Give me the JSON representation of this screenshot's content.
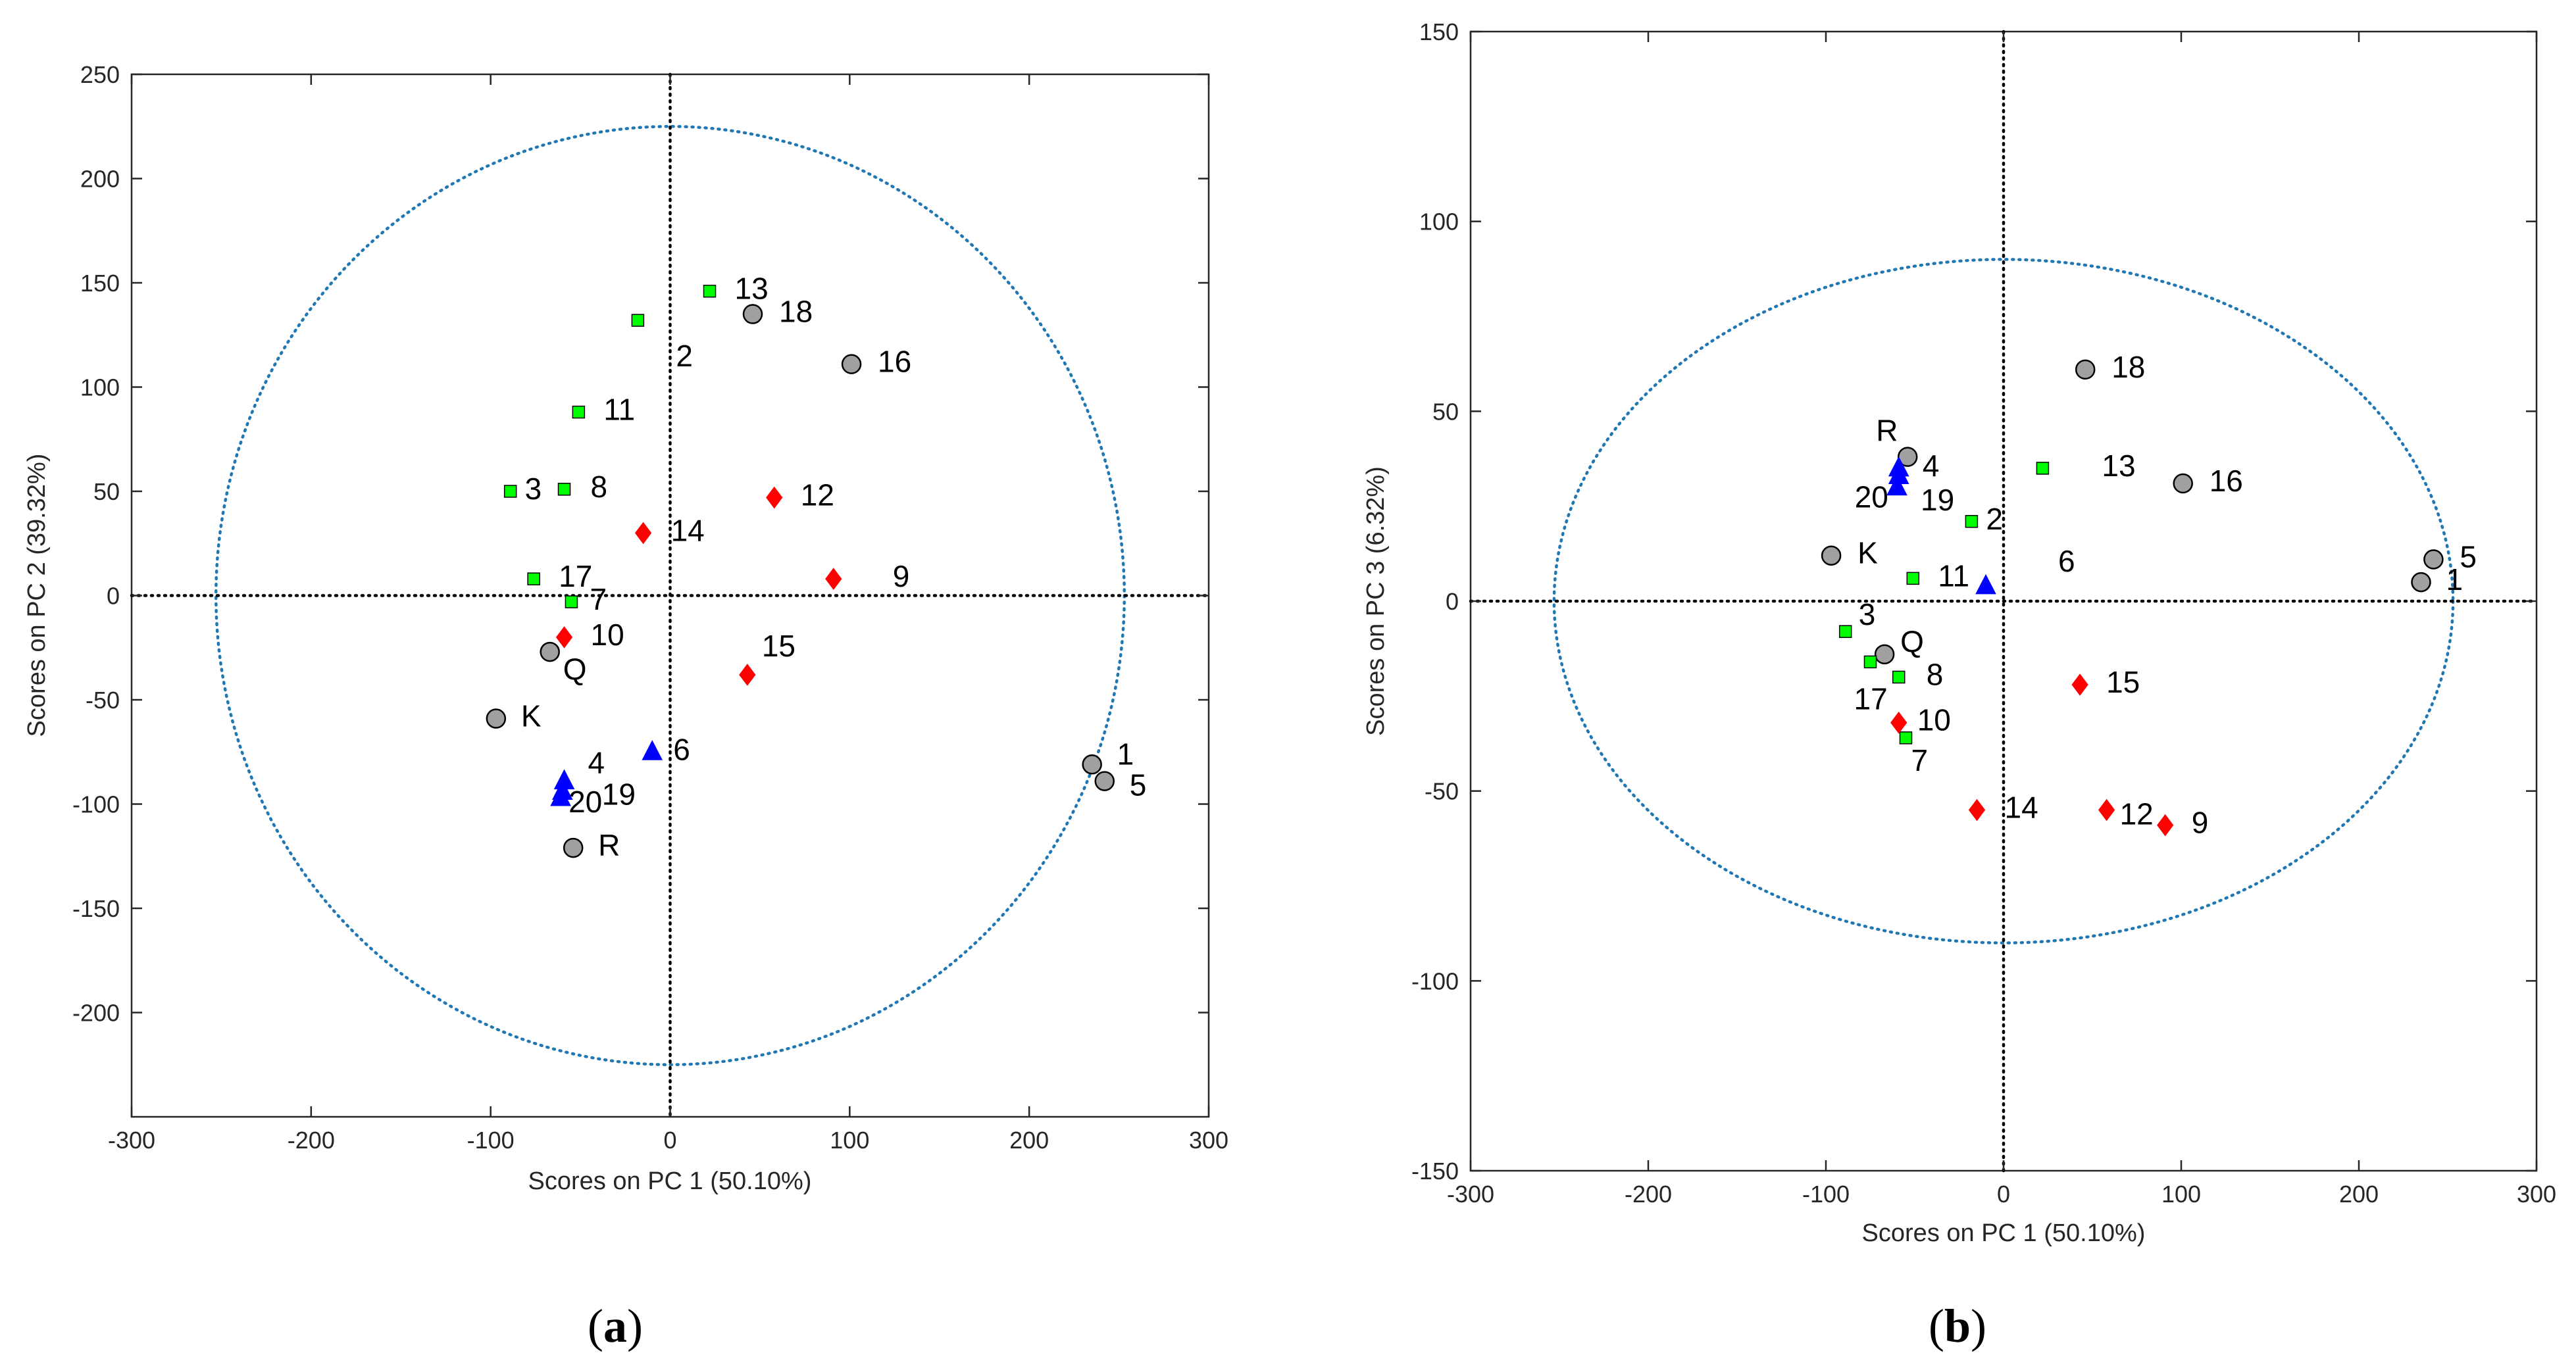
{
  "colors": {
    "group_gray": "#a0a0a0",
    "group_green": "#00ff00",
    "group_red": "#ff0000",
    "group_blue": "#0000ff",
    "ellipse": "#1f77b4",
    "axes": "#262626"
  },
  "panels": [
    {
      "caption_open": "(",
      "caption_letter": "a",
      "caption_close": ")"
    },
    {
      "caption_open": "(",
      "caption_letter": "b",
      "caption_close": ")"
    }
  ],
  "chart_data": [
    {
      "type": "scatter",
      "title": "",
      "xlabel": "Scores on PC 1 (50.10%)",
      "ylabel": "Scores on PC 2 (39.32%)",
      "xlim": [
        -300,
        300
      ],
      "ylim": [
        -250,
        250
      ],
      "xticks": [
        -300,
        -200,
        -100,
        0,
        100,
        200,
        300
      ],
      "yticks": [
        -200,
        -150,
        -100,
        -50,
        0,
        50,
        100,
        150,
        200,
        250
      ],
      "zero_lines": true,
      "confidence_ellipse": {
        "center": [
          0,
          0
        ],
        "rx": 253,
        "ry": 225
      },
      "grid": false,
      "points": [
        {
          "label": "1",
          "x": 235,
          "y": -81,
          "group": "gray"
        },
        {
          "label": "5",
          "x": 242,
          "y": -89,
          "group": "gray"
        },
        {
          "label": "18",
          "x": 46,
          "y": 135,
          "group": "gray"
        },
        {
          "label": "16",
          "x": 101,
          "y": 111,
          "group": "gray"
        },
        {
          "label": "Q",
          "x": -67,
          "y": -27,
          "group": "gray"
        },
        {
          "label": "K",
          "x": -97,
          "y": -59,
          "group": "gray"
        },
        {
          "label": "R",
          "x": -54,
          "y": -121,
          "group": "gray"
        },
        {
          "label": "13",
          "x": 22,
          "y": 146,
          "group": "green"
        },
        {
          "label": "2",
          "x": -18,
          "y": 132,
          "group": "green"
        },
        {
          "label": "11",
          "x": -51,
          "y": 88,
          "group": "green"
        },
        {
          "label": "3",
          "x": -89,
          "y": 50,
          "group": "green"
        },
        {
          "label": "8",
          "x": -59,
          "y": 51,
          "group": "green"
        },
        {
          "label": "17",
          "x": -76,
          "y": 8,
          "group": "green"
        },
        {
          "label": "7",
          "x": -55,
          "y": -3,
          "group": "green"
        },
        {
          "label": "12",
          "x": 58,
          "y": 47,
          "group": "red"
        },
        {
          "label": "14",
          "x": -15,
          "y": 30,
          "group": "red"
        },
        {
          "label": "9",
          "x": 91,
          "y": 8,
          "group": "red"
        },
        {
          "label": "15",
          "x": 43,
          "y": -38,
          "group": "red"
        },
        {
          "label": "10",
          "x": -59,
          "y": -20,
          "group": "red"
        },
        {
          "label": "6",
          "x": -10,
          "y": -75,
          "group": "blue"
        },
        {
          "label": "4",
          "x": -59,
          "y": -89,
          "group": "blue"
        },
        {
          "label": "19",
          "x": -60,
          "y": -94,
          "group": "blue"
        },
        {
          "label": "20",
          "x": -61,
          "y": -97,
          "group": "blue"
        }
      ]
    },
    {
      "type": "scatter",
      "title": "",
      "xlabel": "Scores on PC 1 (50.10%)",
      "ylabel": "Scores on PC 3 (6.32%)",
      "xlim": [
        -300,
        300
      ],
      "ylim": [
        -150,
        150
      ],
      "xticks": [
        -300,
        -200,
        -100,
        0,
        100,
        200,
        300
      ],
      "yticks": [
        -150,
        -100,
        -50,
        0,
        50,
        100,
        150
      ],
      "zero_lines": true,
      "confidence_ellipse": {
        "center": [
          0,
          0
        ],
        "rx": 253,
        "ry": 90
      },
      "grid": false,
      "points": [
        {
          "label": "1",
          "x": 235,
          "y": 5,
          "group": "gray"
        },
        {
          "label": "5",
          "x": 242,
          "y": 11,
          "group": "gray"
        },
        {
          "label": "18",
          "x": 46,
          "y": 61,
          "group": "gray"
        },
        {
          "label": "16",
          "x": 101,
          "y": 31,
          "group": "gray"
        },
        {
          "label": "R",
          "x": -54,
          "y": 38,
          "group": "gray"
        },
        {
          "label": "K",
          "x": -97,
          "y": 12,
          "group": "gray"
        },
        {
          "label": "Q",
          "x": -67,
          "y": -14,
          "group": "gray"
        },
        {
          "label": "13",
          "x": 22,
          "y": 35,
          "group": "green"
        },
        {
          "label": "2",
          "x": -18,
          "y": 21,
          "group": "green"
        },
        {
          "label": "11",
          "x": -51,
          "y": 6,
          "group": "green"
        },
        {
          "label": "3",
          "x": -89,
          "y": -8,
          "group": "green"
        },
        {
          "label": "17",
          "x": -75,
          "y": -16,
          "group": "green"
        },
        {
          "label": "8",
          "x": -59,
          "y": -20,
          "group": "green"
        },
        {
          "label": "7",
          "x": -55,
          "y": -36,
          "group": "green"
        },
        {
          "label": "15",
          "x": 43,
          "y": -22,
          "group": "red"
        },
        {
          "label": "10",
          "x": -59,
          "y": -32,
          "group": "red"
        },
        {
          "label": "14",
          "x": -15,
          "y": -55,
          "group": "red"
        },
        {
          "label": "12",
          "x": 58,
          "y": -55,
          "group": "red"
        },
        {
          "label": "9",
          "x": 91,
          "y": -59,
          "group": "red"
        },
        {
          "label": "4",
          "x": -59,
          "y": 35,
          "group": "blue"
        },
        {
          "label": "19",
          "x": -60,
          "y": 30,
          "group": "blue"
        },
        {
          "label": "20",
          "x": -59,
          "y": 33,
          "group": "blue"
        },
        {
          "label": "6",
          "x": -10,
          "y": 4,
          "group": "blue"
        }
      ]
    }
  ]
}
